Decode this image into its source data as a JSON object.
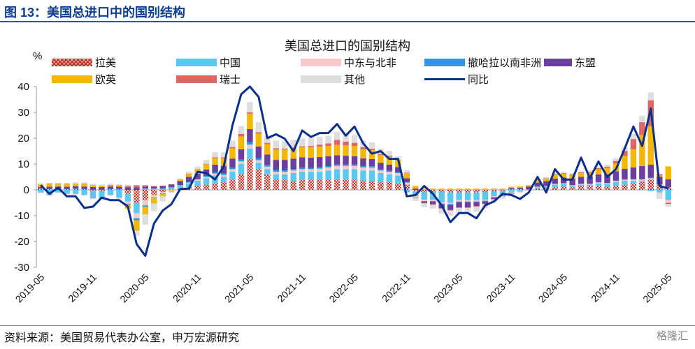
{
  "figure_label": "图 13：美国总进口中的国别结构",
  "source_note": "资料来源：美国贸易代表办公室，申万宏源研究",
  "watermark": "格隆汇",
  "chart_data": {
    "type": "bar",
    "stacked": true,
    "title": "美国总进口的国别结构",
    "ylabel": "%",
    "ylim": [
      -30,
      40
    ],
    "yticks": [
      -30,
      -20,
      -10,
      0,
      10,
      20,
      30,
      40
    ],
    "xtick_labels": [
      "2019-05",
      "2019-11",
      "2020-05",
      "2020-11",
      "2021-05",
      "2021-11",
      "2022-05",
      "2022-11",
      "2023-05",
      "2023-11",
      "2024-05",
      "2024-11",
      "2025-05"
    ],
    "categories": [
      "2019-05",
      "2019-06",
      "2019-07",
      "2019-08",
      "2019-09",
      "2019-10",
      "2019-11",
      "2019-12",
      "2020-01",
      "2020-02",
      "2020-03",
      "2020-04",
      "2020-05",
      "2020-06",
      "2020-07",
      "2020-08",
      "2020-09",
      "2020-10",
      "2020-11",
      "2020-12",
      "2021-01",
      "2021-02",
      "2021-03",
      "2021-04",
      "2021-05",
      "2021-06",
      "2021-07",
      "2021-08",
      "2021-09",
      "2021-10",
      "2021-11",
      "2021-12",
      "2022-01",
      "2022-02",
      "2022-03",
      "2022-04",
      "2022-05",
      "2022-06",
      "2022-07",
      "2022-08",
      "2022-09",
      "2022-10",
      "2022-11",
      "2022-12",
      "2023-01",
      "2023-02",
      "2023-03",
      "2023-04",
      "2023-05",
      "2023-06",
      "2023-07",
      "2023-08",
      "2023-09",
      "2023-10",
      "2023-11",
      "2023-12",
      "2024-01",
      "2024-02",
      "2024-03",
      "2024-04",
      "2024-05",
      "2024-06",
      "2024-07",
      "2024-08",
      "2024-09",
      "2024-10",
      "2024-11",
      "2024-12",
      "2025-01",
      "2025-02",
      "2025-03",
      "2025-04",
      "2025-05"
    ],
    "note": "Component values are approximate readings (estimated) from the stacked bars; 同比 line values read from the axis.",
    "series": [
      {
        "name": "拉美",
        "color": "#c0392b",
        "pattern": "check",
        "values": [
          0.5,
          0.3,
          0.4,
          0.3,
          0.4,
          0.3,
          -0.3,
          -0.5,
          0.3,
          0.2,
          -1.5,
          -5,
          -4,
          -2,
          -0.8,
          0.2,
          0.5,
          1,
          1.5,
          2,
          2.5,
          3,
          4,
          6,
          12,
          8,
          6,
          4,
          4,
          3.5,
          4,
          4,
          4,
          4,
          4,
          4,
          4,
          3.5,
          3.5,
          3,
          3,
          2.5,
          2,
          -0.5,
          -0.8,
          -0.8,
          -0.8,
          -1,
          -1,
          -1,
          -1,
          -0.8,
          -0.5,
          -0.3,
          0.2,
          0.3,
          0.2,
          0.5,
          0.8,
          1,
          1.2,
          1,
          1.5,
          1.5,
          1.5,
          1.2,
          1.5,
          2,
          2.5,
          3,
          4,
          2,
          1
        ]
      },
      {
        "name": "中国",
        "color": "#5ac8f0",
        "values": [
          -1,
          -2,
          -1,
          -1.5,
          -1.5,
          -2,
          -3,
          -3,
          -2,
          -3,
          -3,
          -4,
          0.5,
          0.5,
          0.5,
          0.8,
          1,
          1.5,
          2,
          2.5,
          3,
          2,
          3,
          4,
          4,
          2.5,
          2,
          2,
          2,
          3,
          3,
          3,
          3,
          3.5,
          4,
          4,
          4,
          4,
          4,
          3.5,
          3,
          3,
          -1,
          -2,
          -3,
          -3,
          -4,
          -4,
          -3,
          -3,
          -3,
          -3,
          -2,
          -1.5,
          -1,
          -0.5,
          0,
          0.5,
          0.5,
          1,
          1,
          0.5,
          0.5,
          0.5,
          1,
          1,
          1.5,
          1.5,
          1,
          0.5,
          -0.5,
          -1,
          -4
        ]
      },
      {
        "name": "中东与北非",
        "color": "#f9c9c9",
        "values": [
          -0.3,
          -0.3,
          -0.2,
          -0.2,
          -0.3,
          -0.2,
          -0.3,
          -0.3,
          -0.3,
          -0.5,
          -1,
          -2,
          -2,
          -1,
          -0.5,
          -0.2,
          0.2,
          0.3,
          0.5,
          0.5,
          0.8,
          0.8,
          1,
          1,
          1.5,
          1,
          1,
          1,
          1,
          1,
          1,
          1,
          1.2,
          1.2,
          1.3,
          1.3,
          1.3,
          1.2,
          1.1,
          1,
          1,
          1,
          0.8,
          -0.5,
          -0.5,
          -0.5,
          -0.5,
          -0.5,
          -0.5,
          -0.5,
          -0.5,
          -0.4,
          -0.3,
          -0.3,
          -0.2,
          -0.2,
          0,
          0.2,
          0.2,
          0.3,
          0.3,
          0.3,
          0.3,
          0.3,
          0.4,
          0.4,
          0.4,
          0.4,
          0.5,
          0.5,
          0.5,
          -0.5,
          -1
        ]
      },
      {
        "name": "撤哈拉以南非洲",
        "color": "#1e9ee0",
        "values": [
          0.1,
          0.1,
          0.1,
          0.1,
          0.1,
          0.1,
          0.1,
          0.1,
          0.1,
          0.1,
          -0.3,
          -0.8,
          -0.5,
          -0.3,
          -0.2,
          0.1,
          0.2,
          0.3,
          0.3,
          0.4,
          0.5,
          0.5,
          0.6,
          0.7,
          1,
          0.8,
          0.7,
          0.6,
          0.6,
          0.6,
          0.6,
          0.5,
          0.5,
          0.5,
          0.5,
          0.5,
          0.5,
          0.5,
          0.5,
          0.4,
          0.4,
          0.3,
          0.2,
          -0.2,
          -0.3,
          -0.3,
          -0.3,
          -0.3,
          -0.3,
          -0.3,
          -0.3,
          -0.2,
          -0.2,
          -0.2,
          -0.1,
          0,
          0.1,
          0.1,
          0.1,
          0.1,
          0.1,
          0.1,
          0.1,
          0.1,
          0.1,
          0.1,
          0.2,
          0.2,
          0.2,
          0.2,
          0.2,
          0.1,
          0.1
        ]
      },
      {
        "name": "东盟",
        "color": "#6a3fa0",
        "values": [
          0.5,
          0.8,
          0.8,
          0.8,
          0.9,
          0.9,
          1,
          1,
          0.9,
          0.9,
          1,
          1,
          0.8,
          0.8,
          1,
          1,
          1.5,
          2,
          2,
          2.5,
          3,
          3,
          3.5,
          4,
          5,
          4.5,
          4,
          4,
          4,
          4,
          4,
          4,
          4,
          3.8,
          3.6,
          3.4,
          3.2,
          3,
          2.8,
          2.6,
          2.4,
          2,
          1.5,
          0.5,
          -0.5,
          -1,
          -1.5,
          -2,
          -2,
          -2,
          -1.5,
          -1,
          -0.5,
          0,
          0.5,
          0.5,
          1,
          1.5,
          1.8,
          2,
          2.2,
          2.4,
          2.6,
          2.8,
          3,
          3.3,
          3.6,
          4,
          4.5,
          5,
          5,
          3,
          3
        ]
      },
      {
        "name": "欧英",
        "color": "#f5b800",
        "values": [
          1,
          1,
          1,
          1,
          1,
          1,
          0.8,
          0.5,
          0.5,
          0.5,
          -1.5,
          -4,
          -3,
          -2,
          -1,
          -0.5,
          0.5,
          1,
          1.5,
          2,
          2.5,
          3,
          4,
          5,
          6,
          5,
          4,
          4,
          4,
          4,
          4,
          4,
          4,
          4,
          4,
          4,
          4,
          3.5,
          3.5,
          3,
          3,
          2.5,
          2,
          1,
          0.5,
          0.5,
          0.5,
          0.5,
          0.5,
          0.5,
          0.5,
          0.5,
          0.5,
          0.5,
          0.5,
          0.5,
          0.5,
          1,
          1,
          1.5,
          1.5,
          1.5,
          1.5,
          1.5,
          2,
          2.5,
          3,
          5,
          7,
          12,
          15,
          0.5,
          5
        ]
      },
      {
        "name": "瑞士",
        "color": "#e06666",
        "values": [
          0,
          0.2,
          0.1,
          0.1,
          0,
          0.1,
          0,
          0,
          0.1,
          0.1,
          0.5,
          0.8,
          0.5,
          0.2,
          0.1,
          0.1,
          0.1,
          0.2,
          0.2,
          0.2,
          0.3,
          0.3,
          0.5,
          1,
          0.5,
          0.5,
          0.5,
          0.5,
          0.4,
          0.3,
          0.3,
          0.5,
          0.8,
          1,
          2,
          1.5,
          1.2,
          0.8,
          0.5,
          0.4,
          0.3,
          0.2,
          0.2,
          -0.1,
          -0.1,
          -0.2,
          -0.2,
          -0.2,
          -0.2,
          -0.2,
          -0.2,
          -0.2,
          -0.2,
          -0.2,
          -0.2,
          -0.1,
          -0.1,
          0.1,
          0.1,
          0.2,
          0.2,
          0.2,
          0.3,
          0.3,
          0.4,
          0.5,
          1,
          2,
          4,
          5,
          10,
          0.5,
          -0.5
        ]
      },
      {
        "name": "其他",
        "color": "#dedede",
        "values": [
          0.5,
          0.4,
          0.4,
          0.5,
          0.5,
          0.6,
          0.5,
          0.5,
          0.5,
          0.4,
          0.5,
          -2,
          -4,
          -3,
          -2,
          -0.5,
          0.5,
          0.8,
          1,
          1.5,
          2,
          2,
          2.5,
          3,
          4,
          4,
          3,
          3,
          3,
          3,
          3,
          3,
          3,
          3,
          3,
          3,
          3,
          2.5,
          2.5,
          2,
          2,
          1.5,
          1,
          -1,
          -1.5,
          -1.5,
          -2,
          -2,
          -2,
          -2,
          -2,
          -1.5,
          -1.2,
          -1,
          -0.5,
          -0.3,
          0.2,
          0.5,
          0.5,
          0.5,
          0.5,
          0.5,
          0.5,
          0.5,
          0.6,
          0.8,
          1,
          1.5,
          2,
          2.5,
          3,
          -2,
          -1
        ]
      },
      {
        "name": "同比",
        "type": "line",
        "color": "#0b2f8a",
        "values": [
          1.8,
          -1.5,
          0.8,
          -2.5,
          -2.5,
          -7,
          -6.5,
          -3,
          -4,
          -4,
          -6.5,
          -21,
          -25.5,
          -13,
          -8,
          -5.5,
          0.3,
          0.5,
          7,
          6.5,
          4,
          9,
          25,
          37,
          40,
          36,
          20,
          21.5,
          19.8,
          15,
          23,
          20.5,
          22,
          22,
          25.5,
          21,
          24.5,
          18,
          14,
          15,
          12,
          12,
          -2.5,
          -2,
          1.5,
          -1.5,
          -6,
          -12.5,
          -9,
          -9,
          -11,
          -6,
          -4.5,
          -1.5,
          -2,
          -3.5,
          -1,
          5,
          -1,
          8,
          4,
          4,
          12.5,
          4.5,
          11,
          5,
          8,
          16,
          24.5,
          17,
          31.5,
          1.5,
          0.5
        ]
      }
    ],
    "legend": [
      "拉美",
      "中国",
      "中东与北非",
      "撤哈拉以南非洲",
      "东盟",
      "欧英",
      "瑞士",
      "其他",
      "同比"
    ]
  }
}
